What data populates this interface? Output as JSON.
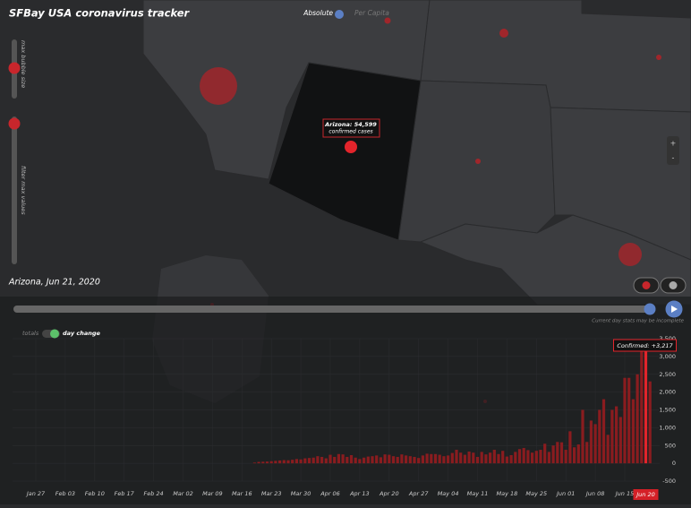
{
  "header": {
    "title": "SFBay USA coronavirus tracker"
  },
  "map_controls": {
    "absolute": "Absolute",
    "per_capita": "Per Capita",
    "max_bubble_size": "max bubble size",
    "filter_max_values": "filter max values",
    "zoom_in": "+",
    "zoom_out": "-"
  },
  "map_tooltip": {
    "title": "Arizona: 54,599",
    "subtitle": "confirmed cases"
  },
  "selection": "Arizona, Jun 21, 2020",
  "timeline_note": "Current day stats may be incomplete",
  "chart_toggle": {
    "totals": "totals",
    "day_change": "day change"
  },
  "chart_data": {
    "type": "bar",
    "annotation": "Confirmed: +3,217",
    "color": "#8a1c1f",
    "highlight_color": "#e3242b",
    "grid": true,
    "ylim": [
      -500,
      3500
    ],
    "yticks": [
      -500,
      0,
      500,
      {
        "value": 1000,
        "label": "1,000"
      },
      {
        "value": 1500,
        "label": "1,500"
      },
      {
        "value": 2000,
        "label": "2,000"
      },
      {
        "value": 2500,
        "label": "2,500"
      },
      {
        "value": 3000,
        "label": "3,000"
      },
      {
        "value": 3500,
        "label": "3,500"
      }
    ],
    "categories": [
      null,
      null,
      null,
      null,
      null,
      "Jan 27",
      null,
      null,
      null,
      null,
      null,
      null,
      "Feb 03",
      null,
      null,
      null,
      null,
      null,
      null,
      "Feb 10",
      null,
      null,
      null,
      null,
      null,
      null,
      "Feb 17",
      null,
      null,
      null,
      null,
      null,
      null,
      "Feb 24",
      null,
      null,
      null,
      null,
      null,
      null,
      "Mar 02",
      null,
      null,
      null,
      null,
      null,
      null,
      "Mar 09",
      null,
      null,
      null,
      null,
      null,
      null,
      "Mar 16",
      null,
      null,
      null,
      null,
      null,
      null,
      "Mar 23",
      null,
      null,
      null,
      null,
      null,
      null,
      "Mar 30",
      null,
      null,
      null,
      null,
      null,
      null,
      "Apr 06",
      null,
      null,
      null,
      null,
      null,
      null,
      "Apr 13",
      null,
      null,
      null,
      null,
      null,
      null,
      "Apr 20",
      null,
      null,
      null,
      null,
      null,
      null,
      "Apr 27",
      null,
      null,
      null,
      null,
      null,
      null,
      "May 04",
      null,
      null,
      null,
      null,
      null,
      null,
      "May 11",
      null,
      null,
      null,
      null,
      null,
      null,
      "May 18",
      null,
      null,
      null,
      null,
      null,
      null,
      "May 25",
      null,
      null,
      null,
      null,
      null,
      null,
      "Jun 01",
      null,
      null,
      null,
      null,
      null,
      null,
      "Jun 08",
      null,
      null,
      null,
      null,
      null,
      null,
      "Jun 15",
      null,
      null,
      null,
      null,
      "Jun 20",
      null
    ],
    "values": [
      0,
      0,
      0,
      0,
      0,
      0,
      0,
      0,
      0,
      0,
      0,
      0,
      0,
      0,
      0,
      0,
      0,
      0,
      0,
      0,
      0,
      0,
      0,
      0,
      0,
      0,
      0,
      0,
      0,
      0,
      0,
      0,
      0,
      0,
      0,
      0,
      0,
      0,
      0,
      0,
      0,
      0,
      0,
      0,
      0,
      0,
      0,
      0,
      0,
      0,
      0,
      0,
      0,
      0,
      0,
      0,
      0,
      20,
      40,
      45,
      50,
      60,
      70,
      80,
      90,
      85,
      100,
      120,
      110,
      140,
      150,
      160,
      200,
      180,
      140,
      240,
      180,
      260,
      250,
      180,
      230,
      160,
      120,
      160,
      190,
      200,
      220,
      170,
      250,
      240,
      200,
      180,
      250,
      220,
      200,
      180,
      150,
      220,
      270,
      260,
      260,
      240,
      200,
      220,
      290,
      380,
      300,
      240,
      330,
      300,
      180,
      320,
      250,
      300,
      380,
      260,
      350,
      190,
      230,
      320,
      400,
      430,
      370,
      300,
      350,
      380,
      550,
      320,
      500,
      600,
      590,
      380,
      900,
      450,
      530,
      1500,
      600,
      1200,
      1100,
      1500,
      1800,
      800,
      1500,
      1600,
      1300,
      2400,
      2400,
      1800,
      2500,
      3200,
      3217,
      2300
    ]
  }
}
